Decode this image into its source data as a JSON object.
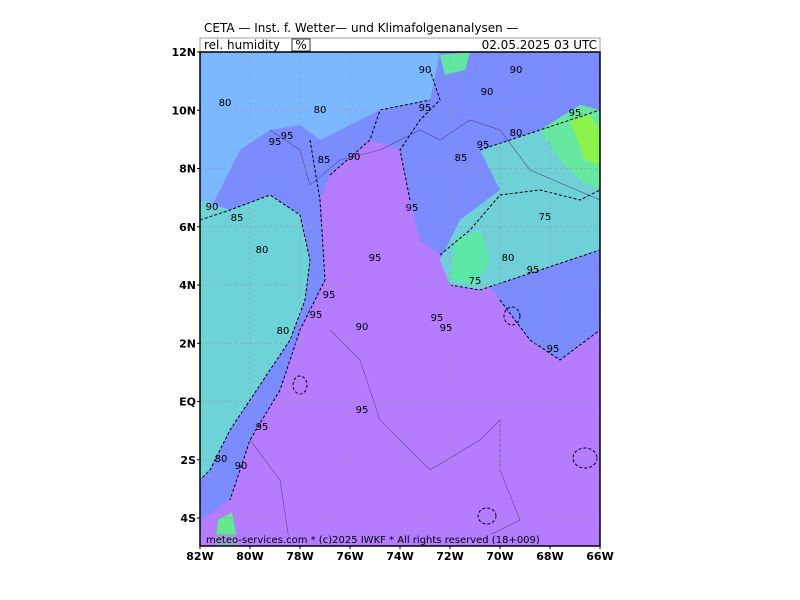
{
  "header": {
    "title": "CETA — Inst. f. Wetter— und Klimafolgenanalysen —",
    "variable": "rel. humidity",
    "unit": "%",
    "date": "02.05.2025  03 UTC"
  },
  "lat_ticks": [
    "12N",
    "10N",
    "8N",
    "6N",
    "4N",
    "2N",
    "EQ",
    "2S",
    "4S"
  ],
  "lon_ticks": [
    "82W",
    "80W",
    "78W",
    "76W",
    "74W",
    "72W",
    "70W",
    "68W",
    "66W"
  ],
  "contour_labels": [
    "80",
    "80",
    "90",
    "90",
    "90",
    "95",
    "95",
    "95",
    "85",
    "95",
    "80",
    "95",
    "85",
    "90",
    "90",
    "85",
    "95",
    "75",
    "80",
    "95",
    "80",
    "95",
    "75",
    "95",
    "95",
    "95",
    "95",
    "90",
    "80",
    "95",
    "95",
    "95",
    "80",
    "90"
  ],
  "footer": "meteo-services.com * (c)2025 IWKF * All rights reserved (18+009)"
}
